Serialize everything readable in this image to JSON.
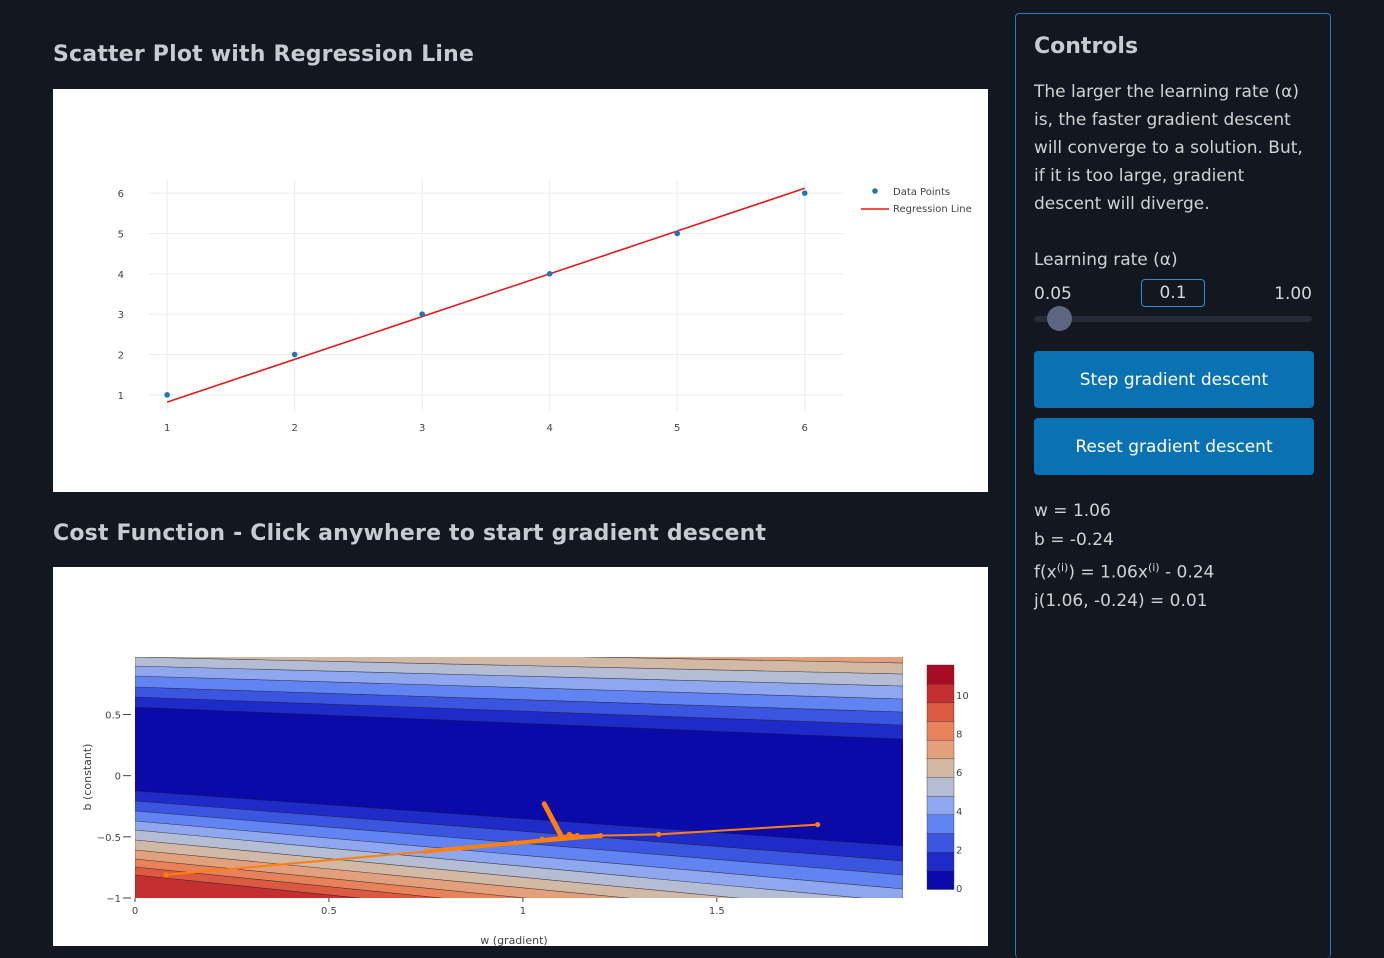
{
  "scatter": {
    "title": "Scatter Plot with Regression Line",
    "legend": {
      "points": "Data Points",
      "line": "Regression Line"
    },
    "chart_data": {
      "type": "scatter",
      "x": [
        1,
        2,
        3,
        4,
        5,
        6
      ],
      "y": [
        1,
        2,
        3,
        4,
        5,
        6
      ],
      "regression": {
        "w": 1.06,
        "b": -0.24,
        "x_range": [
          1,
          6
        ]
      },
      "xlim": [
        0.85,
        6.3
      ],
      "ylim": [
        0.6,
        6.35
      ],
      "xticks": [
        "1",
        "2",
        "3",
        "4",
        "5",
        "6"
      ],
      "yticks": [
        "1",
        "2",
        "3",
        "4",
        "5",
        "6"
      ],
      "grid": true,
      "legend_position": "top-right",
      "colors": {
        "points": "#1f77b4",
        "line": "#e31a1c"
      }
    }
  },
  "cost": {
    "title": "Cost Function - Click anywhere to start gradient descent",
    "xlabel": "w (gradient)",
    "ylabel": "b (constant)",
    "chart_data": {
      "type": "contour",
      "xlim": [
        0,
        1.98
      ],
      "ylim": [
        -1,
        0.97
      ],
      "xticks": [
        "0",
        "0.5",
        "1",
        "1.5"
      ],
      "yticks": [
        "0.5",
        "0",
        "−0.5",
        "−1"
      ],
      "colorbar_ticks": [
        "0",
        "2",
        "4",
        "6",
        "8",
        "10"
      ],
      "colorscale": [
        "#0a0aa8",
        "#1e2bc9",
        "#3b55e0",
        "#6283f2",
        "#8fa7ee",
        "#b5bdd4",
        "#d2b9a6",
        "#e3a07d",
        "#e8825b",
        "#dd5a42",
        "#c42f2f",
        "#a80c24"
      ],
      "path": {
        "color": "#ff7f0e",
        "points": [
          [
            1.76,
            -0.4
          ],
          [
            1.35,
            -0.48
          ],
          [
            1.2,
            -0.49
          ],
          [
            1.14,
            -0.49
          ],
          [
            1.12,
            -0.48
          ],
          [
            1.1,
            -0.5
          ],
          [
            1.05,
            -0.52
          ],
          [
            0.98,
            -0.55
          ],
          [
            0.75,
            -0.62
          ],
          [
            0.08,
            -0.81
          ]
        ],
        "start": [
          1.055,
          -0.23
        ],
        "end": [
          1.1,
          -0.5
        ]
      }
    }
  },
  "controls": {
    "title": "Controls",
    "description": "The larger the learning rate (α) is, the faster gradient descent will converge to a solution. But, if it is too large, gradient descent will diverge.",
    "lr_label": "Learning rate (α)",
    "lr_min": "0.05",
    "lr_max": "1.00",
    "lr_value": "0.1",
    "lr_fraction": 0.053,
    "step_button": "Step gradient descent",
    "reset_button": "Reset gradient descent",
    "results": {
      "w": "w = 1.06",
      "b": "b = -0.24",
      "f_prefix": "f(x",
      "f_sup1": "(i)",
      "f_mid": ") = 1.06x",
      "f_sup2": "(i)",
      "f_suffix": " - 0.24",
      "j": "j(1.06, -0.24) = 0.01"
    }
  }
}
